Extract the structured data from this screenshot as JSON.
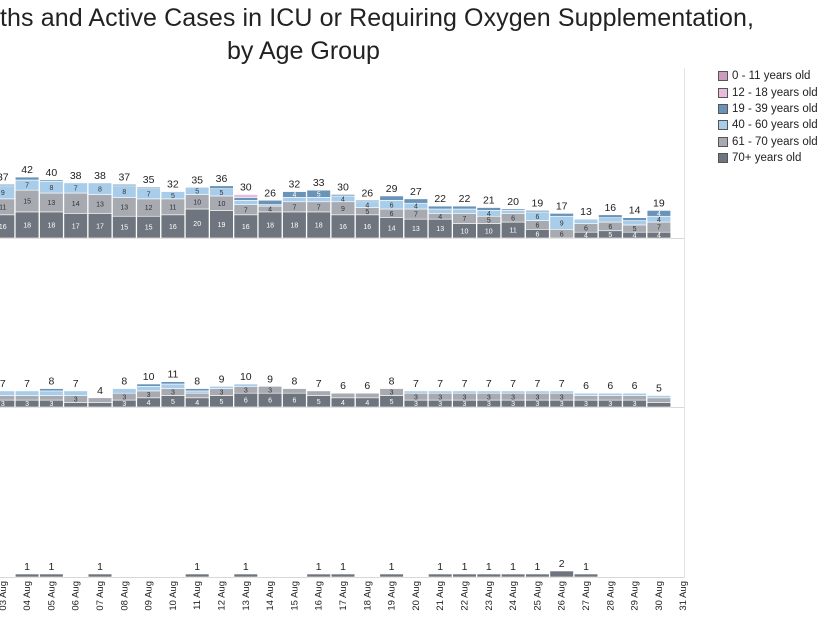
{
  "title_line1": "ths and Active Cases in ICU or Requiring Oxygen Supplementation,",
  "title_line2": "by Age Group",
  "legend": [
    {
      "label": "0 - 11 years old",
      "color": "#c99cc0"
    },
    {
      "label": "12 - 18 years old",
      "color": "#e8bcdb"
    },
    {
      "label": "19 - 39 years old",
      "color": "#6a93b8"
    },
    {
      "label": "40 - 60 years old",
      "color": "#a7cdea"
    },
    {
      "label": "61 - 70 years old",
      "color": "#a8aab2"
    },
    {
      "label": "70+ years old",
      "color": "#6f757e"
    }
  ],
  "chart_data": {
    "type": "bar",
    "stacked": true,
    "categories": [
      "03 Aug",
      "04 Aug",
      "05 Aug",
      "06 Aug",
      "07 Aug",
      "08 Aug",
      "09 Aug",
      "10 Aug",
      "11 Aug",
      "12 Aug",
      "13 Aug",
      "14 Aug",
      "15 Aug",
      "16 Aug",
      "17 Aug",
      "18 Aug",
      "19 Aug",
      "20 Aug",
      "21 Aug",
      "22 Aug",
      "23 Aug",
      "24 Aug",
      "25 Aug",
      "26 Aug",
      "27 Aug",
      "28 Aug",
      "29 Aug",
      "30 Aug",
      "31 Aug"
    ],
    "panels": [
      {
        "name": "panel-top",
        "totals": [
          37,
          42,
          40,
          38,
          38,
          37,
          35,
          32,
          35,
          36,
          30,
          26,
          32,
          33,
          30,
          26,
          29,
          27,
          22,
          22,
          21,
          20,
          19,
          17,
          13,
          16,
          14,
          19,
          null
        ],
        "segments": [
          [
            {
              "a": "70",
              "v": 16
            },
            {
              "a": "61",
              "v": 11
            },
            {
              "a": "40",
              "v": 9
            },
            {
              "a": "19",
              "v": 1
            }
          ],
          [
            {
              "a": "70",
              "v": 18
            },
            {
              "a": "61",
              "v": 15
            },
            {
              "a": "40",
              "v": 7
            },
            {
              "a": "19",
              "v": 2
            }
          ],
          [
            {
              "a": "70",
              "v": 18
            },
            {
              "a": "61",
              "v": 13
            },
            {
              "a": "40",
              "v": 8
            },
            {
              "a": "19",
              "v": 1
            }
          ],
          [
            {
              "a": "70",
              "v": 17
            },
            {
              "a": "61",
              "v": 14
            },
            {
              "a": "40",
              "v": 7
            }
          ],
          [
            {
              "a": "70",
              "v": 17
            },
            {
              "a": "61",
              "v": 13
            },
            {
              "a": "40",
              "v": 8
            }
          ],
          [
            {
              "a": "70",
              "v": 15
            },
            {
              "a": "61",
              "v": 13
            },
            {
              "a": "40",
              "v": 8
            },
            {
              "a": "19",
              "v": 1
            }
          ],
          [
            {
              "a": "70",
              "v": 15
            },
            {
              "a": "61",
              "v": 12
            },
            {
              "a": "40",
              "v": 7
            },
            {
              "a": "19",
              "v": 1
            }
          ],
          [
            {
              "a": "70",
              "v": 16
            },
            {
              "a": "61",
              "v": 11
            },
            {
              "a": "40",
              "v": 5
            }
          ],
          [
            {
              "a": "70",
              "v": 20
            },
            {
              "a": "61",
              "v": 10
            },
            {
              "a": "40",
              "v": 5
            }
          ],
          [
            {
              "a": "70",
              "v": 19
            },
            {
              "a": "61",
              "v": 10
            },
            {
              "a": "40",
              "v": 5
            },
            {
              "a": "19",
              "v": 2
            }
          ],
          [
            {
              "a": "70",
              "v": 16
            },
            {
              "a": "61",
              "v": 7
            },
            {
              "a": "40",
              "v": 3
            },
            {
              "a": "19",
              "v": 2
            },
            {
              "a": "12",
              "v": 2
            }
          ],
          [
            {
              "a": "70",
              "v": 18
            },
            {
              "a": "61",
              "v": 4
            },
            {
              "a": "40",
              "v": 1
            },
            {
              "a": "19",
              "v": 3
            }
          ],
          [
            {
              "a": "70",
              "v": 18
            },
            {
              "a": "61",
              "v": 7
            },
            {
              "a": "40",
              "v": 3
            },
            {
              "a": "19",
              "v": 4
            }
          ],
          [
            {
              "a": "70",
              "v": 18
            },
            {
              "a": "61",
              "v": 7
            },
            {
              "a": "40",
              "v": 3
            },
            {
              "a": "19",
              "v": 5
            }
          ],
          [
            {
              "a": "70",
              "v": 16
            },
            {
              "a": "61",
              "v": 9
            },
            {
              "a": "40",
              "v": 4
            },
            {
              "a": "19",
              "v": 1
            }
          ],
          [
            {
              "a": "70",
              "v": 16
            },
            {
              "a": "61",
              "v": 5
            },
            {
              "a": "40",
              "v": 4
            },
            {
              "a": "19",
              "v": 1
            }
          ],
          [
            {
              "a": "70",
              "v": 14
            },
            {
              "a": "61",
              "v": 6
            },
            {
              "a": "40",
              "v": 6
            },
            {
              "a": "19",
              "v": 3
            }
          ],
          [
            {
              "a": "70",
              "v": 13
            },
            {
              "a": "61",
              "v": 7
            },
            {
              "a": "40",
              "v": 4
            },
            {
              "a": "19",
              "v": 3
            }
          ],
          [
            {
              "a": "70",
              "v": 13
            },
            {
              "a": "61",
              "v": 4
            },
            {
              "a": "40",
              "v": 3
            },
            {
              "a": "19",
              "v": 2
            }
          ],
          [
            {
              "a": "70",
              "v": 10
            },
            {
              "a": "61",
              "v": 7
            },
            {
              "a": "40",
              "v": 3
            },
            {
              "a": "19",
              "v": 2
            }
          ],
          [
            {
              "a": "70",
              "v": 10
            },
            {
              "a": "61",
              "v": 5
            },
            {
              "a": "40",
              "v": 4
            },
            {
              "a": "19",
              "v": 2
            }
          ],
          [
            {
              "a": "70",
              "v": 11
            },
            {
              "a": "61",
              "v": 6
            },
            {
              "a": "40",
              "v": 2
            },
            {
              "a": "19",
              "v": 1
            }
          ],
          [
            {
              "a": "70",
              "v": 6
            },
            {
              "a": "61",
              "v": 6
            },
            {
              "a": "40",
              "v": 6
            },
            {
              "a": "19",
              "v": 1
            }
          ],
          [
            {
              "a": "70",
              "v": 0
            },
            {
              "a": "61",
              "v": 6
            },
            {
              "a": "40",
              "v": 9
            },
            {
              "a": "19",
              "v": 2
            }
          ],
          [
            {
              "a": "70",
              "v": 4
            },
            {
              "a": "61",
              "v": 6
            },
            {
              "a": "40",
              "v": 3
            }
          ],
          [
            {
              "a": "70",
              "v": 5
            },
            {
              "a": "61",
              "v": 6
            },
            {
              "a": "40",
              "v": 3
            },
            {
              "a": "19",
              "v": 2
            }
          ],
          [
            {
              "a": "70",
              "v": 4
            },
            {
              "a": "61",
              "v": 5
            },
            {
              "a": "40",
              "v": 3
            },
            {
              "a": "19",
              "v": 2
            }
          ],
          [
            {
              "a": "70",
              "v": 4
            },
            {
              "a": "61",
              "v": 7
            },
            {
              "a": "40",
              "v": 4
            },
            {
              "a": "19",
              "v": 4
            }
          ],
          []
        ]
      },
      {
        "name": "panel-middle",
        "totals": [
          7,
          7,
          8,
          7,
          4,
          8,
          10,
          11,
          8,
          9,
          10,
          9,
          8,
          7,
          6,
          6,
          8,
          7,
          7,
          7,
          7,
          7,
          7,
          7,
          6,
          6,
          6,
          5,
          null
        ],
        "segments": [
          [
            {
              "a": "70",
              "v": 3
            },
            {
              "a": "61",
              "v": 2
            },
            {
              "a": "40",
              "v": 2
            }
          ],
          [
            {
              "a": "70",
              "v": 3
            },
            {
              "a": "61",
              "v": 2
            },
            {
              "a": "40",
              "v": 2
            }
          ],
          [
            {
              "a": "70",
              "v": 3
            },
            {
              "a": "61",
              "v": 2
            },
            {
              "a": "40",
              "v": 2
            },
            {
              "a": "19",
              "v": 1
            }
          ],
          [
            {
              "a": "70",
              "v": 2
            },
            {
              "a": "61",
              "v": 3
            },
            {
              "a": "40",
              "v": 2
            }
          ],
          [
            {
              "a": "70",
              "v": 2
            },
            {
              "a": "61",
              "v": 2
            }
          ],
          [
            {
              "a": "70",
              "v": 3
            },
            {
              "a": "61",
              "v": 3
            },
            {
              "a": "40",
              "v": 2
            }
          ],
          [
            {
              "a": "70",
              "v": 4
            },
            {
              "a": "61",
              "v": 3
            },
            {
              "a": "40",
              "v": 2
            },
            {
              "a": "19",
              "v": 1
            }
          ],
          [
            {
              "a": "70",
              "v": 5
            },
            {
              "a": "61",
              "v": 3
            },
            {
              "a": "40",
              "v": 2
            },
            {
              "a": "19",
              "v": 1
            }
          ],
          [
            {
              "a": "70",
              "v": 4
            },
            {
              "a": "61",
              "v": 2
            },
            {
              "a": "40",
              "v": 1
            },
            {
              "a": "19",
              "v": 1
            }
          ],
          [
            {
              "a": "70",
              "v": 5
            },
            {
              "a": "61",
              "v": 3
            },
            {
              "a": "40",
              "v": 1
            }
          ],
          [
            {
              "a": "70",
              "v": 6
            },
            {
              "a": "61",
              "v": 3
            },
            {
              "a": "40",
              "v": 1
            }
          ],
          [
            {
              "a": "70",
              "v": 6
            },
            {
              "a": "61",
              "v": 3
            }
          ],
          [
            {
              "a": "70",
              "v": 6
            },
            {
              "a": "61",
              "v": 2
            }
          ],
          [
            {
              "a": "70",
              "v": 5
            },
            {
              "a": "61",
              "v": 2
            }
          ],
          [
            {
              "a": "70",
              "v": 4
            },
            {
              "a": "61",
              "v": 2
            }
          ],
          [
            {
              "a": "70",
              "v": 4
            },
            {
              "a": "61",
              "v": 2
            }
          ],
          [
            {
              "a": "70",
              "v": 5
            },
            {
              "a": "61",
              "v": 3
            }
          ],
          [
            {
              "a": "70",
              "v": 3
            },
            {
              "a": "61",
              "v": 3
            },
            {
              "a": "40",
              "v": 1
            }
          ],
          [
            {
              "a": "70",
              "v": 3
            },
            {
              "a": "61",
              "v": 3
            },
            {
              "a": "40",
              "v": 1
            }
          ],
          [
            {
              "a": "70",
              "v": 3
            },
            {
              "a": "61",
              "v": 3
            },
            {
              "a": "40",
              "v": 1
            }
          ],
          [
            {
              "a": "70",
              "v": 3
            },
            {
              "a": "61",
              "v": 3
            },
            {
              "a": "40",
              "v": 1
            }
          ],
          [
            {
              "a": "70",
              "v": 3
            },
            {
              "a": "61",
              "v": 3
            },
            {
              "a": "40",
              "v": 1
            }
          ],
          [
            {
              "a": "70",
              "v": 3
            },
            {
              "a": "61",
              "v": 3
            },
            {
              "a": "40",
              "v": 1
            }
          ],
          [
            {
              "a": "70",
              "v": 3
            },
            {
              "a": "61",
              "v": 3
            },
            {
              "a": "40",
              "v": 1
            }
          ],
          [
            {
              "a": "70",
              "v": 3
            },
            {
              "a": "61",
              "v": 2
            },
            {
              "a": "40",
              "v": 1
            }
          ],
          [
            {
              "a": "70",
              "v": 3
            },
            {
              "a": "61",
              "v": 2
            },
            {
              "a": "40",
              "v": 1
            }
          ],
          [
            {
              "a": "70",
              "v": 3
            },
            {
              "a": "61",
              "v": 2
            },
            {
              "a": "40",
              "v": 1
            }
          ],
          [
            {
              "a": "70",
              "v": 2
            },
            {
              "a": "61",
              "v": 2
            },
            {
              "a": "40",
              "v": 1
            }
          ],
          []
        ]
      },
      {
        "name": "panel-bottom",
        "totals": [
          null,
          1,
          1,
          null,
          1,
          null,
          null,
          null,
          1,
          null,
          1,
          null,
          null,
          1,
          1,
          null,
          1,
          null,
          1,
          1,
          1,
          1,
          1,
          2,
          1,
          null,
          null,
          null,
          null
        ],
        "segments": [
          [],
          [
            {
              "a": "70",
              "v": 1
            }
          ],
          [
            {
              "a": "70",
              "v": 1
            }
          ],
          [],
          [
            {
              "a": "70",
              "v": 1
            }
          ],
          [],
          [],
          [],
          [
            {
              "a": "70",
              "v": 1
            }
          ],
          [],
          [
            {
              "a": "70",
              "v": 1
            }
          ],
          [],
          [],
          [
            {
              "a": "70",
              "v": 1
            }
          ],
          [
            {
              "a": "70",
              "v": 1
            }
          ],
          [],
          [
            {
              "a": "70",
              "v": 1
            }
          ],
          [],
          [
            {
              "a": "70",
              "v": 1
            }
          ],
          [
            {
              "a": "70",
              "v": 1
            }
          ],
          [
            {
              "a": "70",
              "v": 1
            }
          ],
          [
            {
              "a": "70",
              "v": 1
            }
          ],
          [
            {
              "a": "70",
              "v": 1
            }
          ],
          [
            {
              "a": "70",
              "v": 2
            }
          ],
          [
            {
              "a": "70",
              "v": 1
            }
          ],
          [],
          [],
          [],
          []
        ]
      }
    ]
  }
}
